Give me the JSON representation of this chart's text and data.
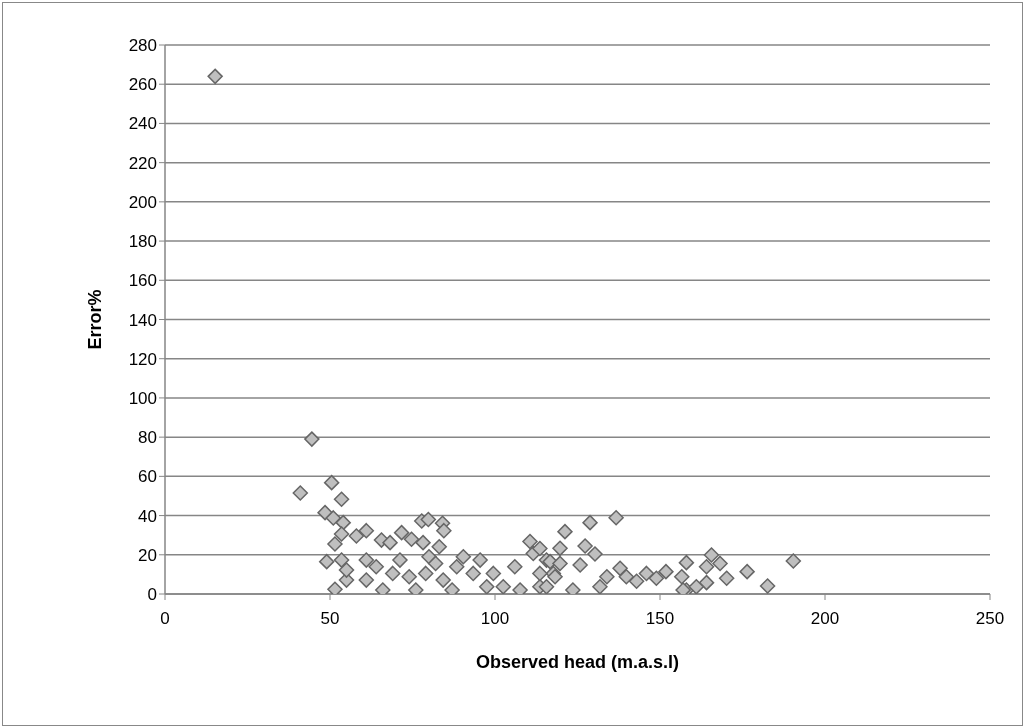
{
  "chart_data": {
    "type": "scatter",
    "xlabel": "Observed head (m.a.s.l)",
    "ylabel": "Error%",
    "xlim": [
      0,
      250
    ],
    "xticks": [
      0,
      50,
      100,
      150,
      200,
      250
    ],
    "ylim": [
      0,
      280
    ],
    "yticks": [
      0,
      20,
      40,
      60,
      80,
      100,
      120,
      140,
      160,
      180,
      200,
      220,
      240,
      260,
      280
    ],
    "grid": "y",
    "marker": "diamond",
    "legend": false,
    "series": [
      {
        "color": "#bfbfbf",
        "x": [
          15.2,
          44.5,
          41,
          50.5,
          53.5,
          48.5,
          51,
          54,
          53.5,
          51.5,
          58,
          61,
          65.6,
          68.2,
          71.7,
          74.7,
          78.2,
          77.8,
          79.8,
          84.1,
          84.5,
          83.1,
          49,
          51.5,
          55,
          55,
          53.5,
          61,
          64,
          61,
          66,
          69,
          71.2,
          74,
          76,
          79,
          80,
          82,
          84.3,
          87,
          88.4,
          90.4,
          93.4,
          95.5,
          97.5,
          99.5,
          102.5,
          106,
          107.6,
          110.6,
          111.6,
          113.6,
          115.6,
          113.6,
          117.7,
          121.2,
          128.8,
          136.7,
          127.3,
          119.7,
          130.3,
          116.7,
          119.7,
          125.8,
          137.9,
          145.9,
          151.8,
          158,
          165.6,
          168.2,
          164.1,
          156.6,
          164.1,
          170.2,
          176.4,
          182.6,
          190.4,
          158,
          161,
          142.9,
          115.6,
          123.6,
          131.8,
          133.9,
          139.8,
          148.9,
          157,
          113.6,
          118.2
        ],
        "values": [
          264,
          79,
          51.5,
          56.8,
          48.3,
          41.5,
          38.8,
          36.4,
          30.6,
          25.5,
          29.6,
          32.3,
          27.5,
          26.2,
          31.3,
          27.9,
          26.2,
          37.2,
          38,
          36.1,
          32.3,
          24.1,
          16.5,
          2.4,
          7.1,
          12.2,
          17.3,
          17.3,
          13.9,
          7.1,
          2,
          10.5,
          17.3,
          8.8,
          2,
          10.5,
          19,
          15.6,
          7.1,
          2,
          13.9,
          19,
          10.5,
          17.3,
          3.7,
          10.5,
          3.7,
          13.9,
          2,
          26.8,
          20.7,
          23.2,
          17.3,
          3.7,
          10.5,
          31.8,
          36.4,
          38.9,
          24.5,
          23.3,
          20.4,
          16.5,
          15.6,
          14.8,
          13.1,
          10.5,
          11.4,
          16,
          19.9,
          15.6,
          13.9,
          8.8,
          5.8,
          8,
          11.4,
          4.1,
          16.8,
          2,
          3.7,
          6.5,
          3.7,
          2,
          3.7,
          8.8,
          8.8,
          8,
          2,
          10.5,
          8.8
        ]
      }
    ]
  }
}
